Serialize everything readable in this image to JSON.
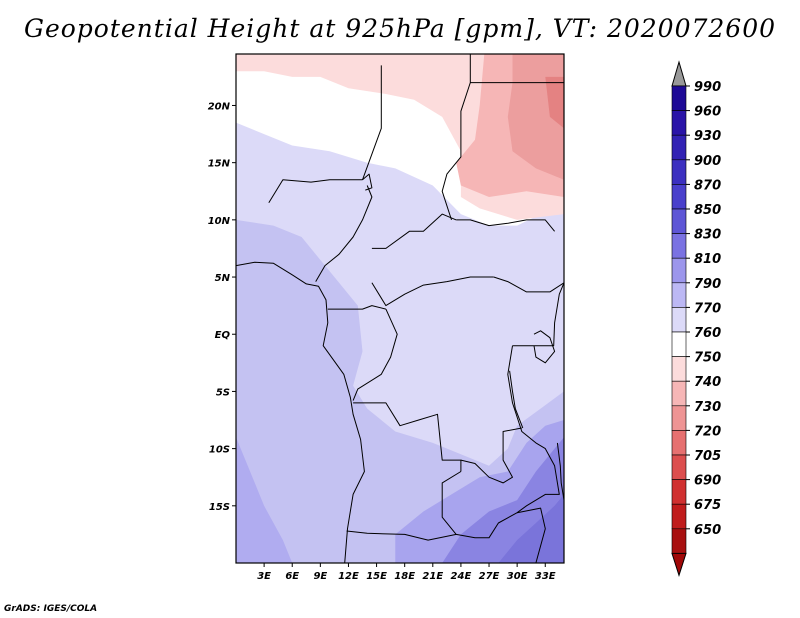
{
  "title": "Geopotential Height at 925hPa [gpm], VT: 2020072600",
  "credit": "GrADS: IGES/COLA",
  "chart_data": {
    "type": "heatmap",
    "title": "Geopotential Height at 925hPa [gpm], VT: 2020072600",
    "variable": "Geopotential Height at 925hPa",
    "units": "gpm",
    "valid_time": "2020072600",
    "xlim": [
      0,
      35
    ],
    "ylim": [
      -20,
      24.5
    ],
    "x_ticks": [
      {
        "value": 3,
        "label": "3E"
      },
      {
        "value": 6,
        "label": "6E"
      },
      {
        "value": 9,
        "label": "9E"
      },
      {
        "value": 12,
        "label": "12E"
      },
      {
        "value": 15,
        "label": "15E"
      },
      {
        "value": 18,
        "label": "18E"
      },
      {
        "value": 21,
        "label": "21E"
      },
      {
        "value": 24,
        "label": "24E"
      },
      {
        "value": 27,
        "label": "27E"
      },
      {
        "value": 30,
        "label": "30E"
      },
      {
        "value": 33,
        "label": "33E"
      }
    ],
    "y_ticks": [
      {
        "value": 20,
        "label": "20N"
      },
      {
        "value": 15,
        "label": "15N"
      },
      {
        "value": 10,
        "label": "10N"
      },
      {
        "value": 5,
        "label": "5N"
      },
      {
        "value": 0,
        "label": "EQ"
      },
      {
        "value": -5,
        "label": "5S"
      },
      {
        "value": -10,
        "label": "10S"
      },
      {
        "value": -15,
        "label": "15S"
      }
    ],
    "colorbar": {
      "labels": [
        "990",
        "960",
        "930",
        "900",
        "870",
        "850",
        "830",
        "810",
        "790",
        "770",
        "760",
        "750",
        "740",
        "730",
        "720",
        "705",
        "690",
        "675",
        "650"
      ],
      "colors": [
        "#1e0a96",
        "#2a14a8",
        "#3222b4",
        "#3c30c0",
        "#4a40cc",
        "#5e56d6",
        "#7a72e2",
        "#9c96ec",
        "#bcb8f4",
        "#dcdaf8",
        "#ffffff",
        "#fcdcdc",
        "#f6b6b6",
        "#ee9494",
        "#e67070",
        "#dc4e4e",
        "#d03030",
        "#c01c1c",
        "#a81010"
      ],
      "extend_top_color": "#999999",
      "extend_bottom_color": "#a00808"
    },
    "regions": [
      {
        "name": "north-sahel-white",
        "value": 765,
        "color": "#ffffff",
        "points": [
          [
            0,
            24.5
          ],
          [
            35,
            24.5
          ],
          [
            35,
            11.5
          ],
          [
            30,
            9.5
          ],
          [
            27,
            9.5
          ],
          [
            24,
            10.5
          ],
          [
            21,
            13
          ],
          [
            17,
            14.5
          ],
          [
            14,
            15
          ],
          [
            10,
            16
          ],
          [
            6,
            16.5
          ],
          [
            3,
            17.5
          ],
          [
            0,
            18.5
          ]
        ]
      },
      {
        "name": "north-rim-pink",
        "value": 750,
        "color": "#fcdcdc",
        "points": [
          [
            0,
            24.5
          ],
          [
            35,
            24.5
          ],
          [
            35,
            10.5
          ],
          [
            30,
            10
          ],
          [
            26,
            11
          ],
          [
            24,
            12
          ],
          [
            24,
            16
          ],
          [
            22,
            19
          ],
          [
            19,
            20.5
          ],
          [
            16,
            21
          ],
          [
            12,
            21.5
          ],
          [
            9,
            22.5
          ],
          [
            6,
            22.5
          ],
          [
            3,
            23
          ],
          [
            0,
            23
          ]
        ]
      },
      {
        "name": "northeast-pink",
        "value": 745,
        "color": "#f6b6b6",
        "points": [
          [
            26.5,
            24.5
          ],
          [
            35,
            24.5
          ],
          [
            35,
            12
          ],
          [
            31,
            12.5
          ],
          [
            27,
            12
          ],
          [
            24,
            13
          ],
          [
            23.5,
            15
          ],
          [
            25.5,
            17
          ],
          [
            26,
            20
          ]
        ]
      },
      {
        "name": "northeast-salmon",
        "value": 730,
        "color": "#ec9e9e",
        "points": [
          [
            29.5,
            24.5
          ],
          [
            35,
            24.5
          ],
          [
            35,
            13.5
          ],
          [
            32,
            14.5
          ],
          [
            29.5,
            16
          ],
          [
            29,
            19
          ],
          [
            29.5,
            22
          ]
        ]
      },
      {
        "name": "northeast-red",
        "value": 720,
        "color": "#e48282",
        "points": [
          [
            33,
            22.5
          ],
          [
            35,
            22.5
          ],
          [
            35,
            18
          ],
          [
            33.5,
            19
          ]
        ]
      },
      {
        "name": "equatorial-lavender",
        "value": 785,
        "color": "#c4c2f2",
        "points": [
          [
            0,
            10
          ],
          [
            4,
            9.5
          ],
          [
            7,
            8.5
          ],
          [
            9,
            6.5
          ],
          [
            11,
            4.5
          ],
          [
            13,
            2.5
          ],
          [
            13.5,
            -1.5
          ],
          [
            12.5,
            -4.5
          ],
          [
            14,
            -6.5
          ],
          [
            17,
            -8.5
          ],
          [
            21,
            -9.5
          ],
          [
            24,
            -10.5
          ],
          [
            27,
            -11.5
          ],
          [
            29,
            -10
          ],
          [
            30,
            -8
          ],
          [
            32.5,
            -6.5
          ],
          [
            35,
            -5
          ],
          [
            35,
            -20
          ],
          [
            0,
            -20
          ]
        ]
      },
      {
        "name": "south-periwinkle",
        "value": 810,
        "color": "#a8a4ee",
        "points": [
          [
            17,
            -20
          ],
          [
            17,
            -17.5
          ],
          [
            20,
            -15.5
          ],
          [
            23,
            -14
          ],
          [
            26,
            -12.5
          ],
          [
            29,
            -12
          ],
          [
            31,
            -9.5
          ],
          [
            33,
            -8
          ],
          [
            35,
            -7.5
          ],
          [
            35,
            -20
          ]
        ]
      },
      {
        "name": "southeast-violet",
        "value": 830,
        "color": "#8a84e2",
        "points": [
          [
            22,
            -20
          ],
          [
            24,
            -17.5
          ],
          [
            27,
            -15.5
          ],
          [
            30,
            -14.5
          ],
          [
            32,
            -12
          ],
          [
            34,
            -10
          ],
          [
            35,
            -9
          ],
          [
            35,
            -20
          ]
        ]
      },
      {
        "name": "southeast-deep-violet",
        "value": 850,
        "color": "#7a74da",
        "points": [
          [
            28,
            -20
          ],
          [
            30,
            -18
          ],
          [
            32,
            -16.5
          ],
          [
            34,
            -15
          ],
          [
            35,
            -14
          ],
          [
            35,
            -20
          ]
        ]
      },
      {
        "name": "atlantic-west-periwinkle",
        "value": 810,
        "color": "#b0acf0",
        "points": [
          [
            0,
            -20
          ],
          [
            0,
            -9
          ],
          [
            1.5,
            -12
          ],
          [
            3,
            -15
          ],
          [
            5,
            -18
          ],
          [
            6,
            -20
          ]
        ]
      }
    ],
    "boundaries": [
      {
        "name": "coastline-west-africa",
        "points": [
          [
            0,
            6
          ],
          [
            2,
            6.3
          ],
          [
            4,
            6.2
          ],
          [
            6,
            5.2
          ],
          [
            7.5,
            4.4
          ],
          [
            8.8,
            4.2
          ],
          [
            9.6,
            3
          ],
          [
            9.8,
            1
          ],
          [
            9.3,
            -1
          ],
          [
            11.5,
            -3.5
          ],
          [
            12.2,
            -5.5
          ],
          [
            12.5,
            -7
          ],
          [
            13.3,
            -9.2
          ],
          [
            13.7,
            -12
          ],
          [
            12.5,
            -14
          ],
          [
            11.9,
            -17
          ],
          [
            11.6,
            -20
          ]
        ]
      },
      {
        "name": "border-libya-egypt",
        "points": [
          [
            25,
            24.5
          ],
          [
            25,
            22
          ],
          [
            24,
            19.5
          ],
          [
            24,
            15.5
          ],
          [
            22.5,
            14
          ],
          [
            22,
            12.5
          ],
          [
            23,
            10
          ]
        ]
      },
      {
        "name": "border-egypt-sudan",
        "points": [
          [
            25,
            22
          ],
          [
            35,
            22
          ]
        ]
      },
      {
        "name": "border-chad-niger",
        "points": [
          [
            15.5,
            23.5
          ],
          [
            15.5,
            20.5
          ],
          [
            15.5,
            18
          ],
          [
            13.5,
            13.5
          ]
        ]
      },
      {
        "name": "border-niger-nigeria",
        "points": [
          [
            3.5,
            11.5
          ],
          [
            5,
            13.5
          ],
          [
            8,
            13.3
          ],
          [
            10,
            13.5
          ],
          [
            13.5,
            13.5
          ]
        ]
      },
      {
        "name": "border-nigeria-cameroon",
        "points": [
          [
            8.5,
            4.6
          ],
          [
            9.5,
            6
          ],
          [
            11,
            7
          ],
          [
            12.5,
            8.5
          ],
          [
            13.5,
            10
          ],
          [
            14.5,
            12
          ],
          [
            14,
            13
          ]
        ]
      },
      {
        "name": "border-chad-car",
        "points": [
          [
            14.5,
            7.5
          ],
          [
            16,
            7.5
          ],
          [
            18.5,
            9
          ],
          [
            20,
            9
          ],
          [
            22,
            10.5
          ],
          [
            23.5,
            10
          ]
        ]
      },
      {
        "name": "border-car-drc",
        "points": [
          [
            14.5,
            4.5
          ],
          [
            16,
            2.5
          ],
          [
            18,
            3.5
          ],
          [
            20,
            4.3
          ],
          [
            22.5,
            4.6
          ],
          [
            25,
            5
          ],
          [
            27.5,
            5
          ]
        ]
      },
      {
        "name": "border-sudan-southsudan",
        "points": [
          [
            23.5,
            10
          ],
          [
            25,
            10
          ],
          [
            27,
            9.5
          ],
          [
            29,
            9.7
          ],
          [
            31,
            10
          ],
          [
            33,
            10
          ],
          [
            34,
            9
          ]
        ]
      },
      {
        "name": "border-southsudan-drc",
        "points": [
          [
            27.5,
            5
          ],
          [
            29,
            4.6
          ],
          [
            31,
            3.7
          ],
          [
            33.5,
            3.7
          ],
          [
            35,
            4.5
          ]
        ]
      },
      {
        "name": "border-cameroon-gabon",
        "points": [
          [
            9.8,
            2.2
          ],
          [
            11.3,
            2.2
          ],
          [
            13.5,
            2.2
          ],
          [
            14.5,
            2.5
          ],
          [
            16,
            2.2
          ]
        ]
      },
      {
        "name": "border-congo-drc",
        "points": [
          [
            16,
            2.2
          ],
          [
            17.2,
            0
          ],
          [
            16.5,
            -2
          ],
          [
            15.5,
            -3.5
          ],
          [
            13,
            -4.8
          ],
          [
            12.5,
            -5.8
          ]
        ]
      },
      {
        "name": "border-angola-drc",
        "points": [
          [
            12.5,
            -6
          ],
          [
            16,
            -6
          ],
          [
            17.5,
            -8
          ],
          [
            19.5,
            -7.5
          ],
          [
            21.5,
            -7
          ],
          [
            22,
            -11
          ],
          [
            24,
            -11
          ],
          [
            24,
            -12
          ]
        ]
      },
      {
        "name": "border-angola-zambia",
        "points": [
          [
            24,
            -12
          ],
          [
            22,
            -13
          ],
          [
            22,
            -16
          ],
          [
            23.5,
            -17.5
          ],
          [
            20.5,
            -18
          ],
          [
            18,
            -17.5
          ],
          [
            14,
            -17.4
          ],
          [
            11.8,
            -17.2
          ]
        ]
      },
      {
        "name": "border-drc-zambia",
        "points": [
          [
            24,
            -11
          ],
          [
            25.5,
            -11.3
          ],
          [
            27,
            -12.5
          ],
          [
            28.5,
            -13
          ],
          [
            29.5,
            -12.5
          ],
          [
            28.5,
            -11
          ],
          [
            28.5,
            -8.5
          ],
          [
            30.5,
            -8.2
          ]
        ]
      },
      {
        "name": "border-east-lakes",
        "points": [
          [
            29.5,
            -1
          ],
          [
            29,
            -3.5
          ],
          [
            29.5,
            -6
          ],
          [
            30.5,
            -8.5
          ],
          [
            32,
            -9.5
          ],
          [
            33,
            -10
          ],
          [
            34,
            -11.5
          ],
          [
            34.5,
            -14
          ],
          [
            33,
            -14
          ],
          [
            31,
            -15
          ],
          [
            30,
            -15.6
          ],
          [
            28,
            -16.5
          ],
          [
            27,
            -17.8
          ],
          [
            25.5,
            -17.8
          ],
          [
            23.5,
            -17.5
          ]
        ]
      },
      {
        "name": "border-uganda-kenya",
        "points": [
          [
            29.5,
            -1
          ],
          [
            30.5,
            -1
          ],
          [
            33.9,
            -1
          ],
          [
            34,
            1
          ],
          [
            34.5,
            3.5
          ],
          [
            35,
            4.5
          ]
        ]
      },
      {
        "name": "border-zambia-zimbabwe",
        "points": [
          [
            30,
            -15.6
          ],
          [
            32.5,
            -15.2
          ],
          [
            33,
            -17
          ],
          [
            32,
            -20
          ]
        ]
      },
      {
        "name": "lake-victoria-edge",
        "points": [
          [
            31.8,
            0
          ],
          [
            32.5,
            0.3
          ],
          [
            33.5,
            -0.3
          ],
          [
            34,
            -1.5
          ],
          [
            33,
            -2.5
          ],
          [
            32,
            -2
          ],
          [
            31.8,
            -1
          ]
        ]
      },
      {
        "name": "lake-tanganyika",
        "points": [
          [
            29.2,
            -3.2
          ],
          [
            29.5,
            -5
          ],
          [
            29.8,
            -6.5
          ],
          [
            30.6,
            -8.2
          ]
        ]
      },
      {
        "name": "lake-malawi",
        "points": [
          [
            34.3,
            -9.5
          ],
          [
            34.6,
            -11.5
          ],
          [
            34.7,
            -13
          ],
          [
            35,
            -14.5
          ]
        ]
      },
      {
        "name": "lake-chad",
        "points": [
          [
            13.5,
            13.5
          ],
          [
            14.2,
            14
          ],
          [
            14.5,
            12.8
          ],
          [
            13.8,
            12.6
          ]
        ]
      }
    ]
  }
}
